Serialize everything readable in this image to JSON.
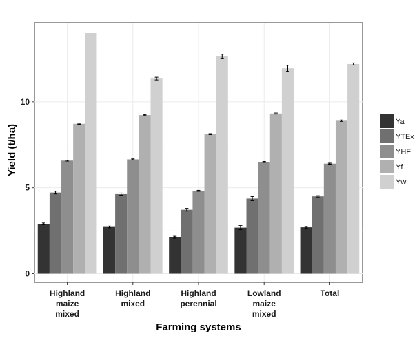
{
  "chart_data": {
    "type": "bar",
    "title": "",
    "xlabel": "Farming systems",
    "ylabel": "Yield (t/ha)",
    "ylim": [
      -0.5,
      14.6
    ],
    "yticks": [
      0,
      5,
      10
    ],
    "categories": [
      [
        "Highland",
        "maize",
        "mixed"
      ],
      [
        "Highland",
        "mixed"
      ],
      [
        "Highland",
        "perennial"
      ],
      [
        "Lowland",
        "maize",
        "mixed"
      ],
      [
        "Total"
      ]
    ],
    "series": [
      {
        "name": "Ya",
        "color": "#333333",
        "values": [
          2.9,
          2.72,
          2.12,
          2.68,
          2.7
        ],
        "errors": [
          0.05,
          0.05,
          0.06,
          0.12,
          0.05
        ]
      },
      {
        "name": "YTEx",
        "color": "#707070",
        "values": [
          4.72,
          4.63,
          3.72,
          4.37,
          4.5
        ],
        "errors": [
          0.08,
          0.06,
          0.08,
          0.12,
          0.04
        ]
      },
      {
        "name": "YHF",
        "color": "#8e8e8e",
        "values": [
          6.58,
          6.65,
          4.82,
          6.5,
          6.4
        ],
        "errors": [
          0.03,
          0.03,
          0.03,
          0.03,
          0.03
        ]
      },
      {
        "name": "Yf",
        "color": "#b0b0b0",
        "values": [
          8.72,
          9.23,
          8.12,
          9.32,
          8.9
        ],
        "errors": [
          0.03,
          0.03,
          0.03,
          0.03,
          0.04
        ]
      },
      {
        "name": "Yw",
        "color": "#d0d0d0",
        "values": [
          14.0,
          11.35,
          12.65,
          11.95,
          12.2
        ],
        "errors": [
          0,
          0.08,
          0.12,
          0.18,
          0.06
        ]
      }
    ],
    "legend": "right",
    "grid": true
  }
}
